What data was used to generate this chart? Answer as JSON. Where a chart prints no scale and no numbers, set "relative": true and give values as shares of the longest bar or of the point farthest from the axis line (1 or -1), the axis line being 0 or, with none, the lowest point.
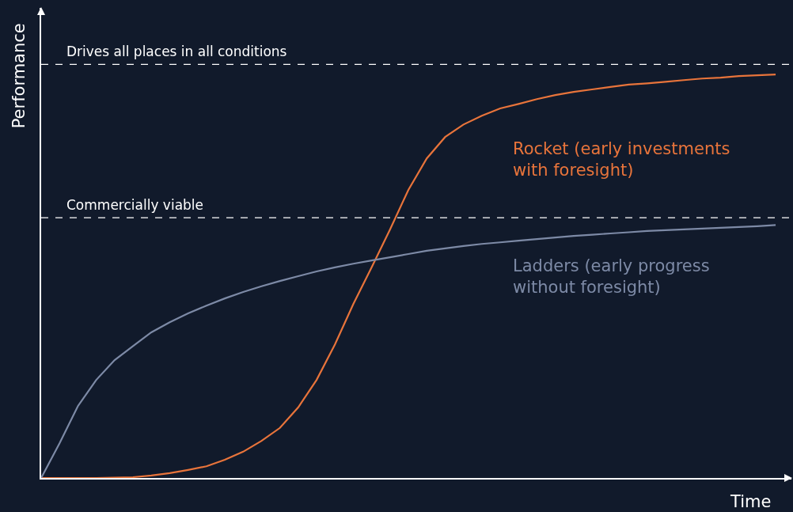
{
  "chart_data": {
    "type": "line",
    "relative": true,
    "xlabel": "Time",
    "ylabel": "Performance",
    "categories": [
      null,
      null,
      null,
      null,
      null,
      null,
      null,
      null,
      null,
      null,
      null,
      null,
      null,
      null,
      null,
      null,
      null,
      null,
      null,
      null,
      null,
      null,
      null,
      null,
      null,
      null,
      null,
      null,
      null,
      null,
      null,
      null,
      null,
      null,
      null,
      null,
      null,
      null,
      null,
      null,
      null
    ],
    "series": [
      {
        "name": "Rocket (early investments with foresight)",
        "color": "#e8743b",
        "values": [
          0,
          0,
          0,
          0,
          0.001,
          0.002,
          0.006,
          0.012,
          0.02,
          0.029,
          0.045,
          0.065,
          0.092,
          0.124,
          0.175,
          0.243,
          0.331,
          0.431,
          0.522,
          0.616,
          0.714,
          0.792,
          0.845,
          0.876,
          0.898,
          0.916,
          0.927,
          0.939,
          0.949,
          0.957,
          0.963,
          0.969,
          0.975,
          0.978,
          0.982,
          0.986,
          0.99,
          0.992,
          0.996,
          0.998,
          1.0
        ]
      },
      {
        "name": "Ladders (early progress without foresight)",
        "color": "#7d8aa6",
        "values": [
          0,
          0.086,
          0.178,
          0.243,
          0.292,
          0.327,
          0.361,
          0.386,
          0.408,
          0.427,
          0.445,
          0.461,
          0.475,
          0.488,
          0.5,
          0.512,
          0.522,
          0.531,
          0.539,
          0.547,
          0.555,
          0.563,
          0.569,
          0.575,
          0.58,
          0.584,
          0.588,
          0.592,
          0.596,
          0.6,
          0.603,
          0.606,
          0.609,
          0.612,
          0.614,
          0.616,
          0.618,
          0.62,
          0.622,
          0.624,
          0.627
        ]
      }
    ],
    "ref_lines": [
      {
        "axis": "y",
        "value": 1.025,
        "label": "Drives all places in all conditions",
        "color": "#ffffff",
        "line_style": "dashed"
      },
      {
        "axis": "y",
        "value": 0.645,
        "label": "Commercially viable",
        "color": "#ffffff",
        "line_style": "dashed"
      }
    ],
    "legend": false,
    "marker": "none",
    "line_style": "solid"
  }
}
